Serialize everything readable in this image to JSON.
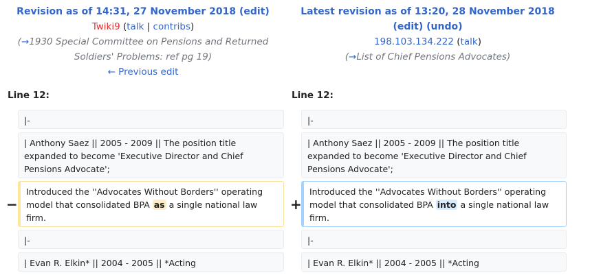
{
  "left": {
    "title": "Revision as of 14:31, 27 November 2018",
    "edit_link": "edit",
    "user": "Twiki9",
    "talk": "talk",
    "contribs": "contribs",
    "comment_arrow": "→",
    "comment_line1": "1930 Special Committee on Pensions and Returned",
    "comment_line2": "Soldiers' Problems:  ref pg 19",
    "prev_edit": "← Previous edit"
  },
  "right": {
    "title": "Latest revision as of 13:20, 28 November 2018",
    "edit_link": "edit",
    "undo_link": "undo",
    "user": "198.103.134.222",
    "talk": "talk",
    "comment_arrow": "→",
    "comment": "List of Chief Pensions Advocates"
  },
  "line_label": "Line 12:",
  "rows": {
    "r1": "|-",
    "r2_line1": "| Anthony Saez  || 2005 - 2009 || The position title",
    "r2_line2": "expanded to become 'Executive Director and Chief",
    "r2_line3": "Pensions Advocate';",
    "r3_left_line1": "Introduced the ''Advocates Without Borders'' operating",
    "r3_left_pre": "model that consolidated BPA ",
    "r3_left_changed": "as",
    "r3_left_post": " a single national law firm.",
    "r3_right_line1": "Introduced the ''Advocates Without Borders'' operating",
    "r3_right_pre": "model that consolidated BPA ",
    "r3_right_changed": "into",
    "r3_right_post": " a single national law",
    "r3_right_line3": "firm.",
    "r4": "|-",
    "r5": "| Evan R. Elkin*  || 2004 - 2005 || *Acting"
  },
  "markers": {
    "minus": "−",
    "plus": "+"
  }
}
